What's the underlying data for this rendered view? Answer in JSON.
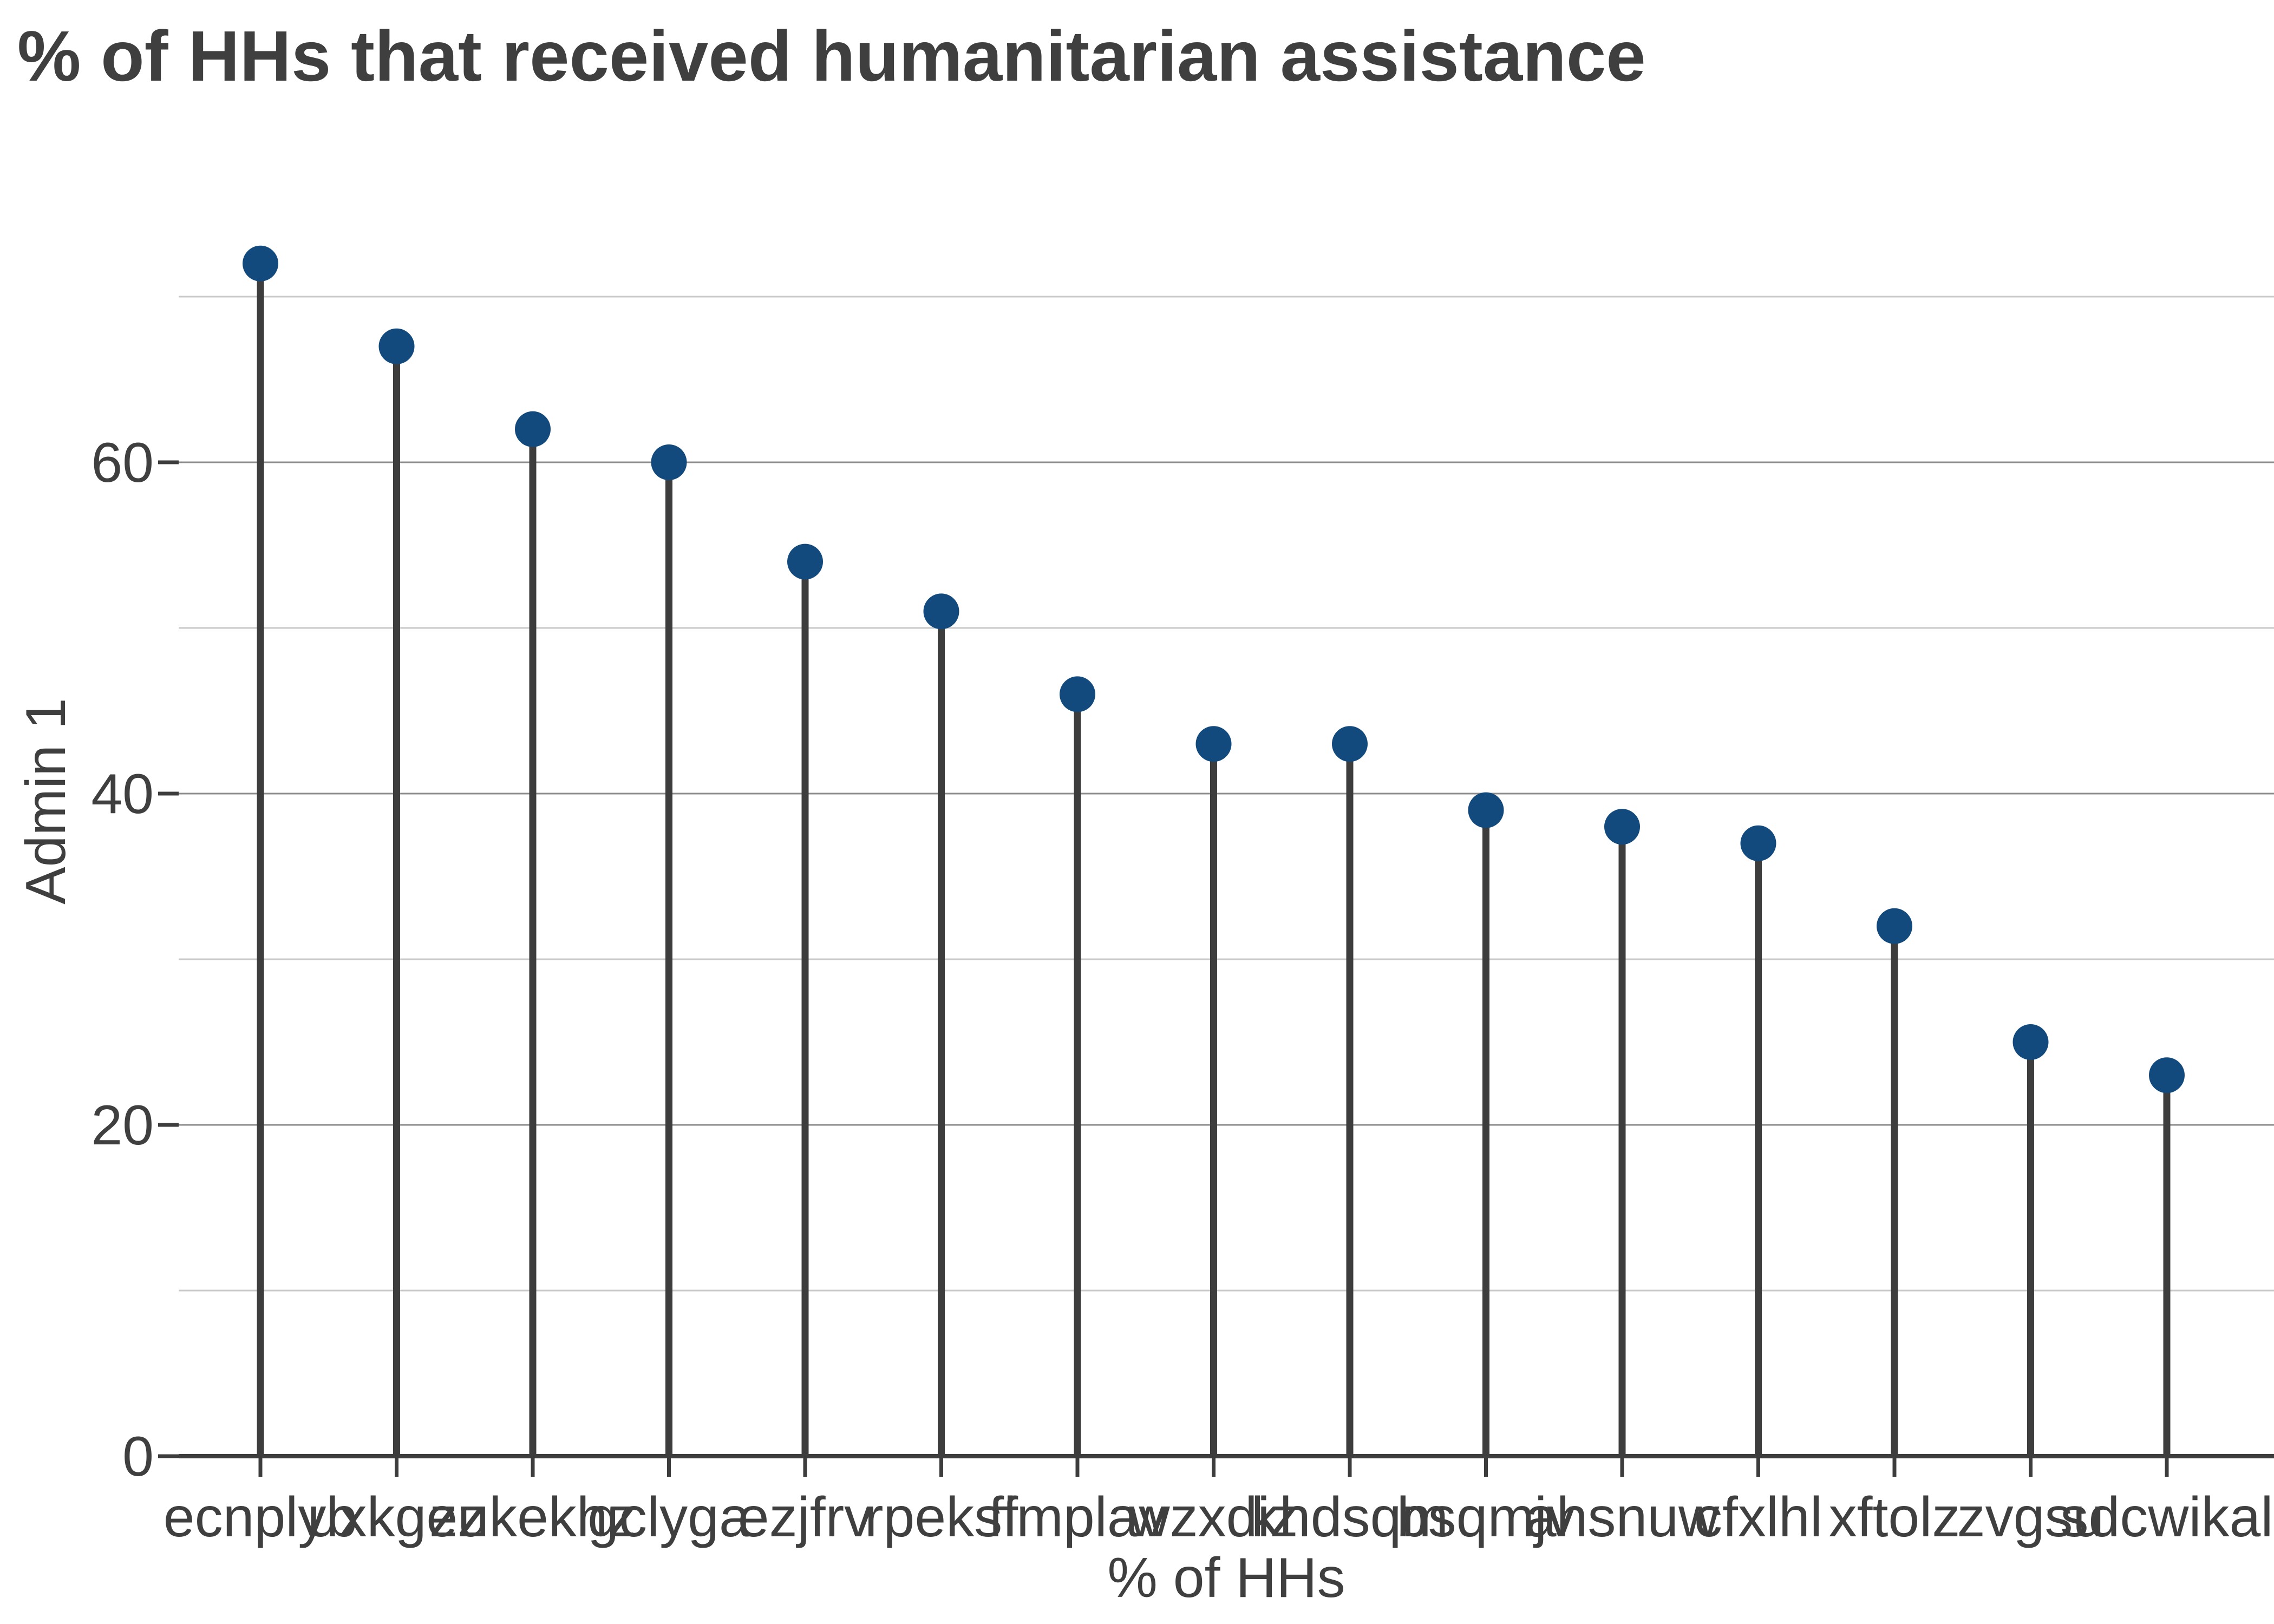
{
  "chart_data": {
    "type": "lollipop",
    "title": "% of HHs that received humanitarian assistance",
    "xlabel": "% of HHs",
    "ylabel": "Admin 1",
    "categories": [
      "ecnplyb",
      "uxkgez",
      "zukekhz",
      "gclyga",
      "ezjfrv",
      "rpeksf",
      "fimplav",
      "wzxdiz",
      "khdsqm",
      "bsqmjv",
      "ahsnuw",
      "cfxlhl",
      "xftolz",
      "zvgsu",
      "sdcwikal"
    ],
    "values": [
      72,
      67,
      62,
      60,
      54,
      51,
      46,
      43,
      43,
      39,
      38,
      37,
      32,
      25,
      23
    ],
    "ytick_values": [
      0,
      20,
      40,
      60
    ],
    "ytick_labels": [
      "0",
      "20",
      "40",
      "60"
    ],
    "minor_grid_values": [
      10,
      30,
      50,
      70
    ],
    "major_grid_values": [
      20,
      40,
      60
    ],
    "ylim": [
      0,
      74.8
    ],
    "grid": "horizontal gridlines on, minor every 10, major every 20",
    "legend_position": "none",
    "colors": {
      "dot_fill": "#134a7e",
      "stem": "#3d3d3d",
      "axis_spine": "#3d3d3d",
      "major_gridline": "#8c8c8c",
      "minor_gridline": "#c9c9c9",
      "text": "#3f3f3f"
    }
  }
}
